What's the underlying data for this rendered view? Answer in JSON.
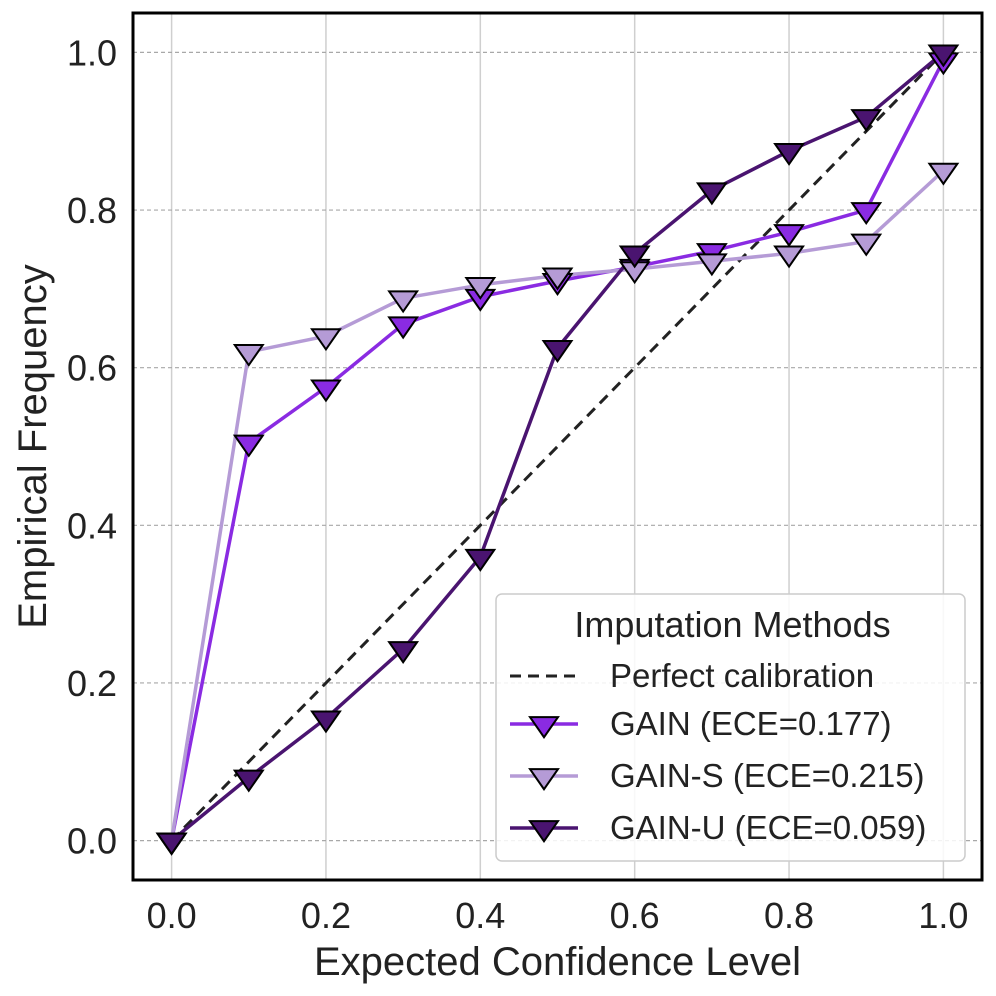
{
  "chart_data": {
    "type": "line",
    "title": "",
    "xlabel": "Expected Confidence Level",
    "ylabel": "Empirical Frequency",
    "xlim": [
      -0.05,
      1.05
    ],
    "ylim": [
      -0.05,
      1.05
    ],
    "x_ticks": [
      "0.0",
      "0.2",
      "0.4",
      "0.6",
      "0.8",
      "1.0"
    ],
    "y_ticks": [
      "0.0",
      "0.2",
      "0.4",
      "0.6",
      "0.8",
      "1.0"
    ],
    "grid": true,
    "legend": {
      "title": "Imputation Methods",
      "placement": "bottom-right"
    },
    "reference_line": {
      "name": "Perfect calibration",
      "style": "dashed",
      "color": "#222222",
      "x": [
        0.0,
        1.0
      ],
      "y": [
        0.0,
        1.0
      ]
    },
    "x": [
      0.0,
      0.1,
      0.2,
      0.3,
      0.4,
      0.5,
      0.6,
      0.7,
      0.8,
      0.9,
      1.0
    ],
    "series": [
      {
        "name": "GAIN (ECE=0.177)",
        "color": "#8a2be2",
        "marker": "triangle-down",
        "values": [
          0.0,
          0.505,
          0.575,
          0.655,
          0.69,
          0.71,
          0.728,
          0.748,
          0.772,
          0.8,
          0.99
        ]
      },
      {
        "name": "GAIN-S (ECE=0.215)",
        "color": "#b59bd6",
        "marker": "triangle-down",
        "values": [
          0.0,
          0.62,
          0.64,
          0.688,
          0.705,
          0.717,
          0.725,
          0.735,
          0.745,
          0.76,
          0.85
        ]
      },
      {
        "name": "GAIN-U (ECE=0.059)",
        "color": "#4a1470",
        "marker": "triangle-down",
        "values": [
          0.0,
          0.08,
          0.155,
          0.243,
          0.36,
          0.625,
          0.745,
          0.825,
          0.875,
          0.918,
          1.0
        ]
      }
    ]
  }
}
